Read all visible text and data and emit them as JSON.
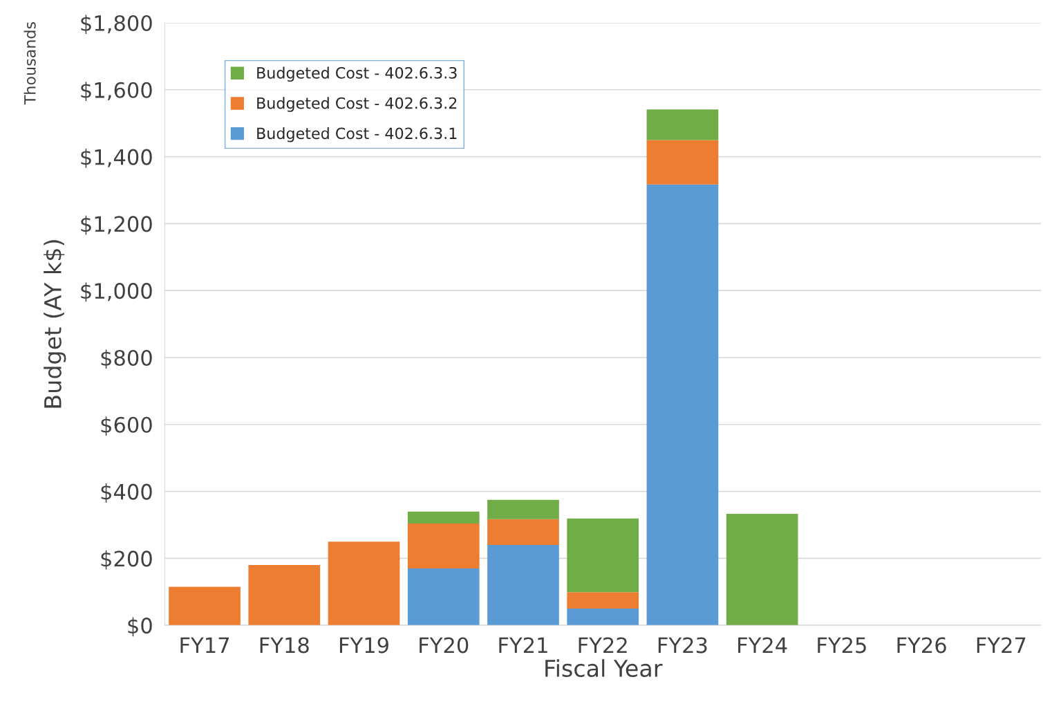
{
  "chart_data": {
    "type": "bar",
    "stacked": true,
    "xlabel": "Fiscal Year",
    "ylabel": "Budget (AY k$)",
    "annotations": [
      "Thousands"
    ],
    "categories": [
      "FY17",
      "FY18",
      "FY19",
      "FY20",
      "FY21",
      "FY22",
      "FY23",
      "FY24",
      "FY25",
      "FY26",
      "FY27"
    ],
    "series": [
      {
        "name": "Budgeted Cost - 402.6.3.1",
        "color": "#5b9bd5",
        "values": [
          null,
          null,
          null,
          170,
          240,
          50,
          1317,
          null,
          null,
          null,
          null
        ]
      },
      {
        "name": "Budgeted Cost - 402.6.3.2",
        "color": "#ed7d31",
        "values": [
          115,
          180,
          250,
          134,
          77,
          49,
          133,
          null,
          null,
          null,
          null
        ]
      },
      {
        "name": "Budgeted Cost - 402.6.3.3",
        "color": "#70ad47",
        "values": [
          null,
          null,
          null,
          36,
          58,
          220,
          91,
          333,
          null,
          null,
          null
        ]
      }
    ],
    "ylim": [
      0,
      1800
    ],
    "yticks": [
      {
        "value": 0,
        "label": "$0"
      },
      {
        "value": 200,
        "label": "$200"
      },
      {
        "value": 400,
        "label": "$400"
      },
      {
        "value": 600,
        "label": "$600"
      },
      {
        "value": 800,
        "label": "$800"
      },
      {
        "value": 1000,
        "label": "$1,000"
      },
      {
        "value": 1200,
        "label": "$1,200"
      },
      {
        "value": 1400,
        "label": "$1,400"
      },
      {
        "value": 1600,
        "label": "$1,600"
      },
      {
        "value": 1800,
        "label": "$1,800"
      }
    ],
    "grid": "y",
    "legend": "top left"
  }
}
